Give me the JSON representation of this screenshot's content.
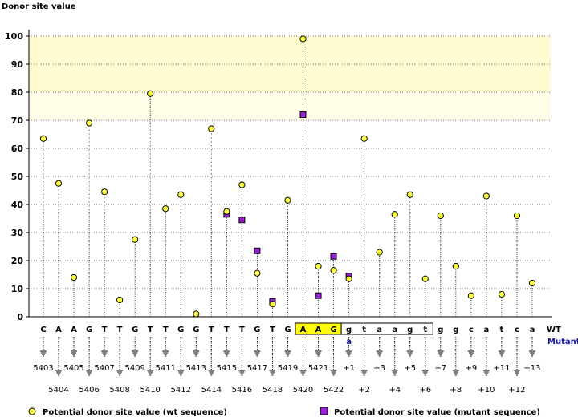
{
  "chart_data": {
    "type": "scatter",
    "ylabel": "Donor site value",
    "ylim": [
      0,
      100
    ],
    "yticks": [
      0,
      10,
      20,
      30,
      40,
      50,
      60,
      70,
      80,
      90,
      100
    ],
    "grid": true,
    "highlight_band": [
      80,
      100
    ],
    "sequence": [
      "C",
      "A",
      "A",
      "G",
      "T",
      "T",
      "G",
      "T",
      "T",
      "G",
      "G",
      "T",
      "T",
      "T",
      "G",
      "T",
      "G",
      "A",
      "A",
      "G",
      "g",
      "t",
      "a",
      "a",
      "g",
      "t",
      "g",
      "g",
      "c",
      "a",
      "t",
      "c",
      "a"
    ],
    "positions": [
      "5403",
      "5404",
      "5405",
      "5406",
      "5407",
      "5408",
      "5409",
      "5410",
      "5411",
      "5412",
      "5413",
      "5414",
      "5415",
      "5416",
      "5417",
      "5418",
      "5419",
      "5420",
      "5421",
      "5422",
      "+1",
      "+2",
      "+3",
      "+4",
      "+5",
      "+6",
      "+7",
      "+8",
      "+9",
      "+10",
      "+11",
      "+12",
      "+13"
    ],
    "mutant_bases": [
      null,
      null,
      null,
      null,
      null,
      null,
      null,
      null,
      null,
      null,
      null,
      null,
      null,
      null,
      null,
      null,
      null,
      null,
      null,
      null,
      "a",
      null,
      null,
      null,
      null,
      null,
      null,
      null,
      null,
      null,
      null,
      null,
      null
    ],
    "exon_box": [
      17,
      19
    ],
    "intron_box": [
      20,
      25
    ],
    "wt_label": "WT",
    "mutant_label": "Mutant",
    "series": [
      {
        "name": "Potential donor site value (wt sequence)",
        "color": "#ffff44",
        "marker": "circle",
        "values": [
          63.5,
          47.5,
          14,
          69,
          44.5,
          6,
          27.5,
          79.5,
          38.5,
          43.5,
          1,
          67,
          37.5,
          47,
          15.5,
          4.5,
          41.5,
          99,
          18,
          16.5,
          13.5,
          63.5,
          23,
          36.5,
          43.5,
          13.5,
          36,
          18,
          7.5,
          43,
          8,
          36,
          12
        ]
      },
      {
        "name": "Potential donor site value (mutant sequence)",
        "color": "#9a1fd6",
        "marker": "square",
        "values": [
          null,
          null,
          null,
          null,
          null,
          null,
          null,
          null,
          null,
          null,
          null,
          null,
          36.5,
          34.5,
          23.5,
          5.5,
          null,
          72,
          7.5,
          21.5,
          14.5,
          null,
          null,
          null,
          null,
          null,
          null,
          null,
          null,
          null,
          null,
          null,
          null
        ]
      }
    ]
  }
}
